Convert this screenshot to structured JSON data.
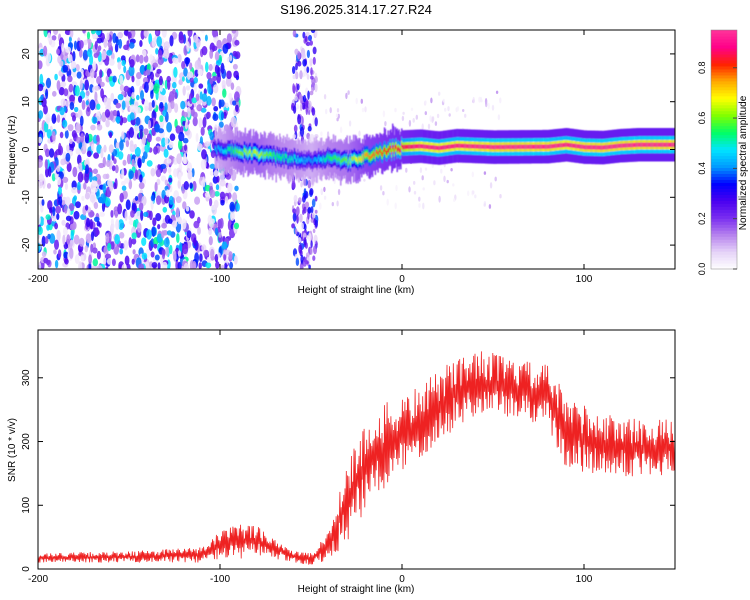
{
  "title": "S196.2025.314.17.27.R24",
  "colors": {
    "snr_line": "#ee2222",
    "colormap": [
      "#ffffff",
      "#e6d4f8",
      "#b784ee",
      "#7a2ff0",
      "#4a00f0",
      "#0000ff",
      "#0099ff",
      "#00e5ff",
      "#00ff66",
      "#7fff00",
      "#ffff00",
      "#ffaa00",
      "#ff2200",
      "#ff0088",
      "#ff3399"
    ]
  },
  "chart_data": [
    {
      "type": "heatmap",
      "name": "spectrogram",
      "title": "S196.2025.314.17.27.R24",
      "xlabel": "Height of straight line (km)",
      "ylabel": "Frequency (Hz)",
      "xlim": [
        -200,
        150
      ],
      "ylim": [
        -25,
        25
      ],
      "xticks": [
        -200,
        -100,
        0,
        100
      ],
      "xtick_labels": [
        "-200",
        "-100",
        "0",
        "100"
      ],
      "yticks": [
        -20,
        -10,
        0,
        10,
        20
      ],
      "ytick_labels": [
        "-20",
        "-10",
        "0",
        "10",
        "20"
      ],
      "colorbar": {
        "label": "Normalized spectral amplitude",
        "range": [
          0,
          0.95
        ],
        "ticks": [
          0,
          0.2,
          0.4,
          0.6,
          0.8
        ],
        "tick_labels": [
          "0.0",
          "0.2",
          "0.4",
          "0.6",
          "0.8"
        ]
      },
      "ridge": {
        "x": [
          -200,
          -150,
          -100,
          -90,
          -80,
          -70,
          -60,
          -50,
          -40,
          -30,
          -20,
          -10,
          0,
          10,
          20,
          30,
          50,
          80,
          90,
          100,
          110,
          120,
          130,
          150
        ],
        "freq": [
          0,
          0,
          0,
          -0.5,
          -1,
          -1.5,
          -2,
          -2.5,
          -1.5,
          -2.5,
          -1.5,
          -0.5,
          0.5,
          0.7,
          0.3,
          0.8,
          0.5,
          0.6,
          1.0,
          0.5,
          0.4,
          0.8,
          1.0,
          1.0
        ],
        "amplitude": [
          0,
          0,
          0.45,
          0.6,
          0.65,
          0.55,
          0.5,
          0.4,
          0.55,
          0.6,
          0.75,
          0.8,
          0.85,
          0.9,
          0.9,
          0.9,
          0.93,
          0.93,
          0.9,
          0.93,
          0.93,
          0.93,
          0.93,
          0.93
        ]
      },
      "noise_region_km": [
        -200,
        -95
      ],
      "noise_band_km": [
        -60,
        -47
      ]
    },
    {
      "type": "line",
      "name": "snr",
      "xlabel": "Height of straight line (km)",
      "ylabel": "SNR (10 * v/v)",
      "xlim": [
        -200,
        150
      ],
      "ylim": [
        0,
        375
      ],
      "xticks": [
        -200,
        -100,
        0,
        100
      ],
      "xtick_labels": [
        "-200",
        "-100",
        "0",
        "100"
      ],
      "yticks": [
        0,
        100,
        200,
        300
      ],
      "ytick_labels": [
        "0",
        "100",
        "200",
        "300"
      ],
      "envelope": {
        "x": [
          -200,
          -150,
          -110,
          -100,
          -90,
          -80,
          -70,
          -60,
          -50,
          -40,
          -30,
          -20,
          -10,
          0,
          10,
          20,
          30,
          40,
          50,
          60,
          70,
          80,
          85,
          90,
          100,
          110,
          120,
          130,
          140,
          150
        ],
        "low": [
          10,
          10,
          10,
          15,
          15,
          20,
          15,
          10,
          5,
          15,
          40,
          90,
          120,
          150,
          170,
          200,
          220,
          240,
          240,
          235,
          230,
          220,
          180,
          160,
          150,
          145,
          145,
          145,
          145,
          145
        ],
        "high": [
          25,
          28,
          35,
          60,
          70,
          70,
          50,
          30,
          25,
          60,
          180,
          230,
          260,
          270,
          290,
          310,
          335,
          345,
          340,
          330,
          325,
          320,
          300,
          270,
          260,
          245,
          240,
          235,
          235,
          235
        ]
      }
    }
  ]
}
